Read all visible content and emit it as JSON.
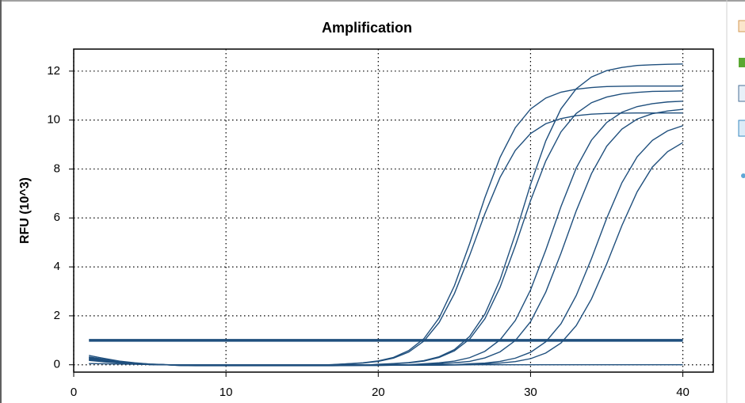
{
  "chart_data": {
    "type": "line",
    "title": "Amplification",
    "y_label": "RFU (10^3)",
    "color": "#1f4f7d",
    "grid": true,
    "threshold": 1,
    "xlim": [
      0,
      42
    ],
    "ylim": [
      -0.3,
      12.9
    ],
    "xticks": [
      0,
      10,
      20,
      30,
      40
    ],
    "yticks": [
      0,
      2,
      4,
      6,
      8,
      10,
      12
    ],
    "x": [
      1,
      2,
      3,
      4,
      5,
      6,
      7,
      8,
      9,
      10,
      11,
      12,
      13,
      14,
      15,
      16,
      17,
      18,
      19,
      20,
      21,
      22,
      23,
      24,
      25,
      26,
      27,
      28,
      29,
      30,
      31,
      32,
      33,
      34,
      35,
      36,
      37,
      38,
      39,
      40
    ],
    "series": [
      {
        "values": [
          0.32,
          0.22,
          0.13,
          0.07,
          0.03,
          0.01,
          -0.02,
          -0.02,
          -0.02,
          -0.02,
          -0.02,
          -0.02,
          -0.02,
          -0.02,
          -0.02,
          -0.02,
          0.01,
          0.04,
          0.08,
          0.16,
          0.3,
          0.58,
          1.07,
          1.92,
          3.23,
          4.95,
          6.83,
          8.48,
          9.69,
          10.45,
          10.9,
          11.14,
          11.26,
          11.33,
          11.37,
          11.38,
          11.39,
          11.39,
          11.39,
          11.39
        ]
      },
      {
        "values": [
          0.28,
          0.19,
          0.11,
          0.06,
          0.02,
          0,
          -0.03,
          -0.03,
          -0.03,
          -0.03,
          -0.03,
          -0.03,
          -0.03,
          -0.03,
          -0.03,
          -0.03,
          0,
          0.04,
          0.07,
          0.14,
          0.27,
          0.52,
          0.97,
          1.73,
          2.91,
          4.47,
          6.17,
          7.66,
          8.76,
          9.45,
          9.85,
          10.06,
          10.18,
          10.24,
          10.27,
          10.28,
          10.29,
          10.29,
          10.29,
          10.29
        ]
      },
      {
        "values": [
          0.38,
          0.26,
          0.15,
          0.08,
          0.03,
          0,
          -0.03,
          -0.04,
          -0.04,
          -0.04,
          -0.04,
          -0.04,
          -0.04,
          -0.04,
          -0.04,
          -0.04,
          -0.04,
          -0.03,
          -0.02,
          0.02,
          0.05,
          0.09,
          0.17,
          0.33,
          0.62,
          1.16,
          2.07,
          3.48,
          5.34,
          7.37,
          9.15,
          10.46,
          11.28,
          11.76,
          12.02,
          12.15,
          12.23,
          12.26,
          12.28,
          12.29
        ]
      },
      {
        "values": [
          0.3,
          0.2,
          0.12,
          0.06,
          0.02,
          0,
          -0.02,
          -0.03,
          -0.03,
          -0.03,
          -0.03,
          -0.03,
          -0.03,
          -0.03,
          -0.03,
          -0.03,
          -0.03,
          -0.03,
          -0.02,
          0,
          0.04,
          0.08,
          0.15,
          0.3,
          0.57,
          1.05,
          1.88,
          3.17,
          4.86,
          6.71,
          8.33,
          9.52,
          10.27,
          10.71,
          10.94,
          11.07,
          11.13,
          11.17,
          11.18,
          11.19
        ]
      },
      {
        "values": [
          0.25,
          0.17,
          0.1,
          0.05,
          0.02,
          0,
          -0.02,
          -0.03,
          -0.03,
          -0.03,
          -0.03,
          -0.03,
          -0.03,
          -0.03,
          -0.03,
          -0.03,
          -0.03,
          -0.03,
          -0.03,
          -0.03,
          -0.02,
          0,
          0.04,
          0.08,
          0.15,
          0.29,
          0.55,
          1.02,
          1.81,
          3.06,
          4.69,
          6.47,
          8.04,
          9.18,
          9.9,
          10.32,
          10.55,
          10.67,
          10.74,
          10.77
        ]
      },
      {
        "values": [
          0.22,
          0.15,
          0.09,
          0.04,
          0.01,
          0,
          -0.02,
          -0.02,
          -0.02,
          -0.02,
          -0.02,
          -0.02,
          -0.02,
          -0.02,
          -0.02,
          -0.02,
          -0.02,
          -0.02,
          -0.02,
          -0.02,
          -0.02,
          -0.01,
          0.01,
          0.04,
          0.08,
          0.14,
          0.28,
          0.53,
          0.99,
          1.76,
          2.97,
          4.56,
          6.29,
          7.81,
          8.93,
          9.63,
          10.04,
          10.26,
          10.37,
          10.44
        ]
      },
      {
        "values": [
          0.2,
          0.14,
          0.08,
          0.04,
          0.01,
          0,
          -0.01,
          -0.02,
          -0.02,
          -0.02,
          -0.02,
          -0.02,
          -0.02,
          -0.02,
          -0.02,
          -0.02,
          -0.02,
          -0.02,
          -0.02,
          -0.02,
          -0.02,
          -0.02,
          -0.02,
          -0.01,
          0,
          0.04,
          0.07,
          0.14,
          0.27,
          0.51,
          0.94,
          1.68,
          2.83,
          4.34,
          5.99,
          7.44,
          8.5,
          9.17,
          9.56,
          9.77
        ]
      },
      {
        "values": [
          0.18,
          0.12,
          0.07,
          0.03,
          0.01,
          0,
          -0.01,
          -0.02,
          -0.02,
          -0.02,
          -0.02,
          -0.02,
          -0.02,
          -0.02,
          -0.02,
          -0.02,
          -0.02,
          -0.02,
          -0.02,
          -0.02,
          -0.02,
          -0.02,
          -0.02,
          -0.02,
          -0.01,
          0,
          0.04,
          0.07,
          0.13,
          0.25,
          0.48,
          0.89,
          1.6,
          2.69,
          4.12,
          5.69,
          7.07,
          8.08,
          8.71,
          9.08
        ]
      },
      {
        "values": [
          0.05,
          0.04,
          0.03,
          0.02,
          0.01,
          0,
          0,
          0,
          0,
          0,
          0,
          0,
          0,
          0,
          0,
          0,
          0,
          0,
          0,
          0,
          0,
          0,
          0,
          0,
          0,
          0,
          0,
          0,
          0,
          0,
          0,
          0,
          0,
          0,
          0,
          0,
          0,
          0,
          0,
          0
        ]
      }
    ]
  }
}
